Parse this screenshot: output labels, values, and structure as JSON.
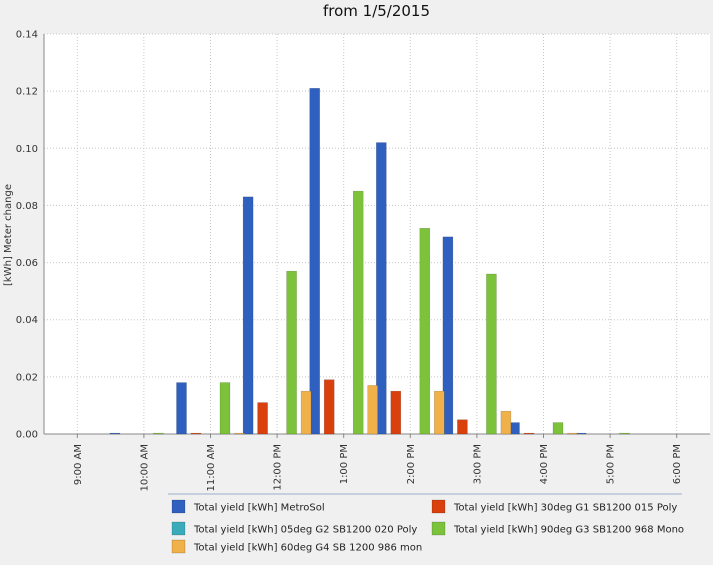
{
  "chart_data": {
    "type": "bar",
    "title": "from 1/5/2015",
    "ylabel": "[kWh] Meter change",
    "xlabel": "",
    "ylim": [
      0,
      0.14
    ],
    "yticks": [
      "0.00",
      "0.02",
      "0.04",
      "0.06",
      "0.08",
      "0.10",
      "0.12",
      "0.14"
    ],
    "grid": true,
    "legend_position": "bottom",
    "categories": [
      "9:00 AM",
      "10:00 AM",
      "11:00 AM",
      "12:00 PM",
      "1:00 PM",
      "2:00 PM",
      "3:00 PM",
      "4:00 PM",
      "5:00 PM",
      "6:00 PM"
    ],
    "series": [
      {
        "name": "Total yield [kWh] MetroSol",
        "color": "#2f5fbf",
        "values": [
          0,
          0.0003,
          0.018,
          0.083,
          0.121,
          0.102,
          0.069,
          0.004,
          0.0003,
          0
        ]
      },
      {
        "name": "Total yield [kWh] 30deg G1 SB1200 015 Poly",
        "color": "#d9400e",
        "values": [
          0,
          0,
          0.0003,
          0.011,
          0.019,
          0.015,
          0.005,
          0.0003,
          0,
          0
        ]
      },
      {
        "name": "Total yield [kWh] 05deg G2 SB1200 020 Poly",
        "color": "#3aabbb",
        "values": [
          0,
          0,
          0,
          0,
          0,
          0,
          0,
          0,
          0,
          0
        ]
      },
      {
        "name": "Total yield [kWh] 90deg G3 SB1200 968 Mono",
        "color": "#7cc23a",
        "values": [
          0,
          0.0003,
          0.018,
          0.057,
          0.085,
          0.072,
          0.056,
          0.004,
          0.0003,
          0
        ]
      },
      {
        "name": "Total yield [kWh] 60deg G4 SB 1200 986 mon",
        "color": "#f0b04a",
        "values": [
          0,
          0,
          0.0003,
          0.015,
          0.017,
          0.015,
          0.008,
          0.0003,
          0,
          0
        ]
      }
    ]
  }
}
